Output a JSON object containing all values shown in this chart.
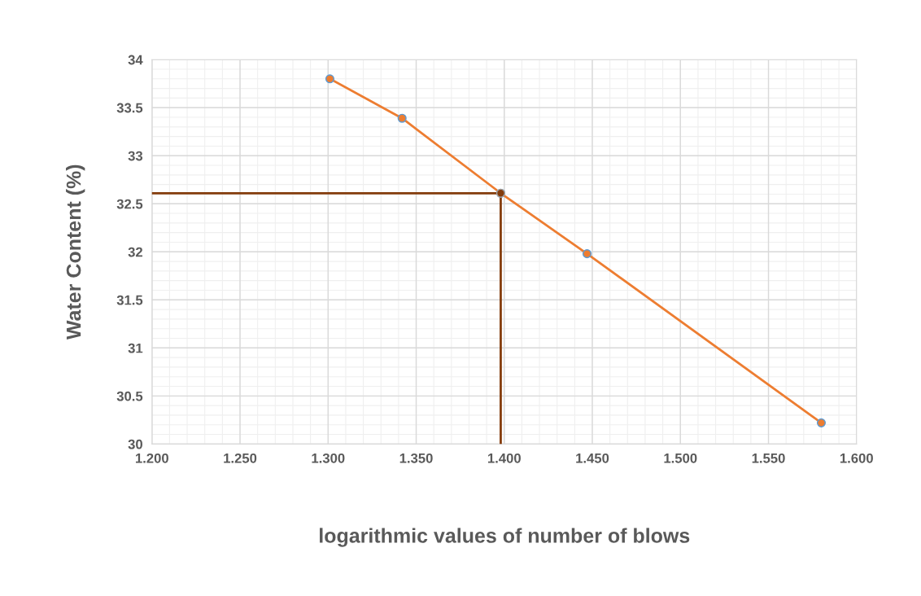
{
  "chart_data": {
    "type": "line",
    "xlabel": "logarithmic values of number of blows",
    "ylabel": "Water Content (%)",
    "xlim": [
      1.2,
      1.6
    ],
    "xticks": [
      {
        "value": 1.2,
        "label": "1.200"
      },
      {
        "value": 1.25,
        "label": "1.250"
      },
      {
        "value": 1.3,
        "label": "1.300"
      },
      {
        "value": 1.35,
        "label": "1.350"
      },
      {
        "value": 1.4,
        "label": "1.400"
      },
      {
        "value": 1.45,
        "label": "1.450"
      },
      {
        "value": 1.5,
        "label": "1.500"
      },
      {
        "value": 1.55,
        "label": "1.550"
      },
      {
        "value": 1.6,
        "label": "1.600"
      }
    ],
    "ylim": [
      30,
      34
    ],
    "yticks": [
      30,
      30.5,
      31,
      31.5,
      32,
      32.5,
      33,
      33.5,
      34
    ],
    "grid": true,
    "marker": "circle",
    "series": [
      {
        "color": "#ed7d31",
        "x": [
          1.301,
          1.342,
          1.398,
          1.447,
          1.58
        ],
        "values": [
          33.8,
          33.39,
          32.61,
          31.98,
          30.22
        ]
      },
      {
        "color": "#843c0c",
        "x": [
          1.2,
          1.398,
          1.398
        ],
        "values": [
          32.61,
          32.61,
          30
        ],
        "marker": "none"
      },
      {
        "type": "scatter",
        "color": "#843c0c",
        "x": [
          1.398
        ],
        "values": [
          32.61
        ]
      }
    ]
  }
}
